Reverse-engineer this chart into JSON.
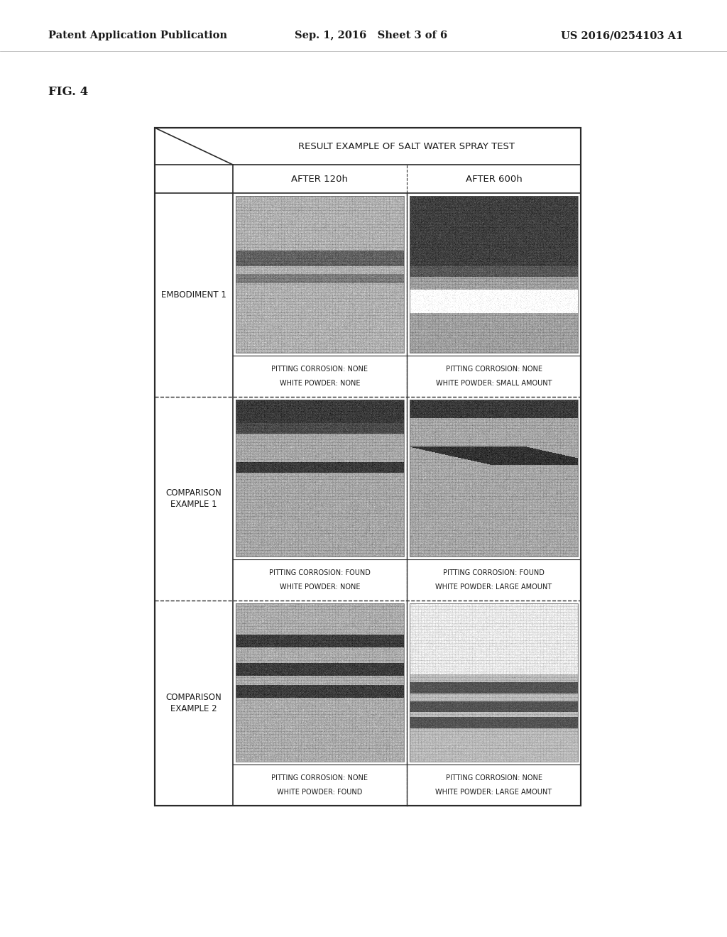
{
  "header_left": "Patent Application Publication",
  "header_center": "Sep. 1, 2016   Sheet 3 of 6",
  "header_right": "US 2016/0254103 A1",
  "fig_label": "FIG. 4",
  "table_title": "RESULT EXAMPLE OF SALT WATER SPRAY TEST",
  "col1_header": "AFTER 120h",
  "col2_header": "AFTER 600h",
  "rows": [
    {
      "label": "EMBODIMENT 1",
      "col1_caption1": "PITTING CORROSION: NONE",
      "col1_caption2": "WHITE POWDER: NONE",
      "col2_caption1": "PITTING CORROSION: NONE",
      "col2_caption2": "WHITE POWDER: SMALL AMOUNT",
      "col1_style": "medium_gray",
      "col2_style": "dark_top"
    },
    {
      "label": "COMPARISON\nEXAMPLE 1",
      "col1_caption1": "PITTING CORROSION: FOUND",
      "col1_caption2": "WHITE POWDER: NONE",
      "col2_caption1": "PITTING CORROSION: FOUND",
      "col2_caption2": "WHITE POWDER: LARGE AMOUNT",
      "col1_style": "medium_gray2",
      "col2_style": "medium_gray3"
    },
    {
      "label": "COMPARISON\nEXAMPLE 2",
      "col1_caption1": "PITTING CORROSION: NONE",
      "col1_caption2": "WHITE POWDER: FOUND",
      "col2_caption1": "PITTING CORROSION: NONE",
      "col2_caption2": "WHITE POWDER: LARGE AMOUNT",
      "col1_style": "medium_gray4",
      "col2_style": "bright_top"
    }
  ],
  "background_color": "#ffffff",
  "text_color": "#1a1a1a",
  "border_color": "#2a2a2a"
}
